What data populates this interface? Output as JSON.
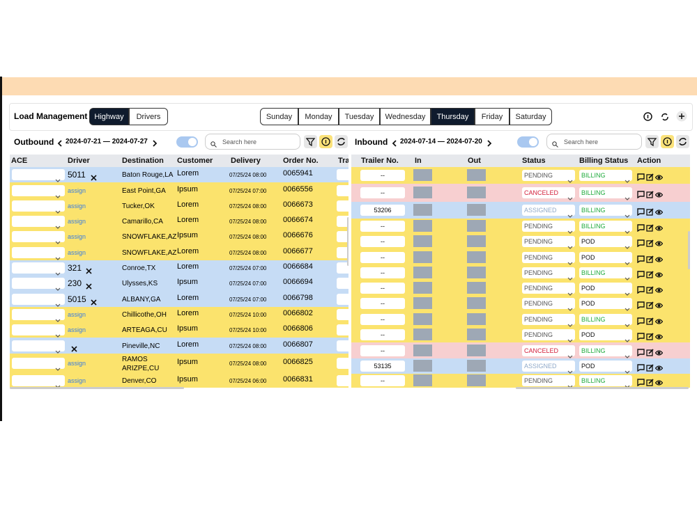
{
  "header": {
    "title": "Load Management",
    "modes": [
      "Highway",
      "Drivers"
    ],
    "days": [
      "Sunday",
      "Monday",
      "Tuesday",
      "Wednesday",
      "Thursday",
      "Friday",
      "Saturday"
    ]
  },
  "outbound": {
    "title": "Outbound",
    "range": "2024-07-21 — 2024-07-27",
    "search_placeholder": "Search here",
    "columns": [
      "ACE",
      "Driver",
      "Destination",
      "Customer",
      "Delivery",
      "Order No.",
      "Tra"
    ],
    "rows": [
      {
        "driver": "5011",
        "destination": "Baton Rouge,LA",
        "customer": "Lorem",
        "delivery": "07/25/24 08:00",
        "order": "0065941"
      },
      {
        "driver": "assign",
        "destination": "East Point,GA",
        "customer": "Ipsum",
        "delivery": "07/25/24 07:00",
        "order": "0066556"
      },
      {
        "driver": "assign",
        "destination": "Tucker,OK",
        "customer": "Lorem",
        "delivery": "07/25/24 08:00",
        "order": "0066673"
      },
      {
        "driver": "assign",
        "destination": "Camarillo,CA",
        "customer": "Lorem",
        "delivery": "07/25/24 08:00",
        "order": "0066674"
      },
      {
        "driver": "assign",
        "destination": "SNOWFLAKE,AZ",
        "customer": "Ipsum",
        "delivery": "07/25/24 08:00",
        "order": "0066676"
      },
      {
        "driver": "assign",
        "destination": "SNOWFLAKE,AZ",
        "customer": "Lorem",
        "delivery": "07/25/24 08:00",
        "order": "0066677"
      },
      {
        "driver": "321",
        "destination": "Conroe,TX",
        "customer": "Lorem",
        "delivery": "07/25/24 07:00",
        "order": "0066684"
      },
      {
        "driver": "230",
        "destination": "Ulysses,KS",
        "customer": "Ipsum",
        "delivery": "07/25/24 07:00",
        "order": "0066694"
      },
      {
        "driver": "5015",
        "destination": "ALBANY,GA",
        "customer": "Lorem",
        "delivery": "07/25/24 07:00",
        "order": "0066798"
      },
      {
        "driver": "assign",
        "destination": "Chillicothe,OH",
        "customer": "Lorem",
        "delivery": "07/25/24 10:00",
        "order": "0066802"
      },
      {
        "driver": "assign",
        "destination": "ARTEAGA,CU",
        "customer": "Ipsum",
        "delivery": "07/25/24 10:00",
        "order": "0066806"
      },
      {
        "driver": null,
        "destination": "Pineville,NC",
        "customer": "Lorem",
        "delivery": "07/25/24 08:00",
        "order": "0066807"
      },
      {
        "driver": "assign",
        "destination": "RAMOS ARIZPE,CU",
        "customer": "Ipsum",
        "delivery": "07/25/24 08:00",
        "order": "0066825"
      },
      {
        "driver": "assign",
        "destination": "Denver,CO",
        "customer": "Ipsum",
        "delivery": "07/25/24 06:00",
        "order": "0066831"
      }
    ]
  },
  "inbound": {
    "title": "Inbound",
    "range": "2024-07-14 — 2024-07-20",
    "search_placeholder": "Search here",
    "columns": [
      "Trailer No.",
      "In",
      "Out",
      "Status",
      "Billing Status",
      "Action"
    ],
    "rows": [
      {
        "trailer": "--",
        "status": "PENDING",
        "billing": "BILLING"
      },
      {
        "trailer": "--",
        "status": "CANCELED",
        "billing": "BILLING"
      },
      {
        "trailer": "53206",
        "status": "ASSIGNED",
        "billing": "BILLING"
      },
      {
        "trailer": "--",
        "status": "PENDING",
        "billing": "BILLING"
      },
      {
        "trailer": "--",
        "status": "PENDING",
        "billing": "POD"
      },
      {
        "trailer": "--",
        "status": "PENDING",
        "billing": "POD"
      },
      {
        "trailer": "--",
        "status": "PENDING",
        "billing": "BILLING"
      },
      {
        "trailer": "--",
        "status": "PENDING",
        "billing": "POD"
      },
      {
        "trailer": "--",
        "status": "PENDING",
        "billing": "POD"
      },
      {
        "trailer": "--",
        "status": "PENDING",
        "billing": "BILLING"
      },
      {
        "trailer": "--",
        "status": "PENDING",
        "billing": "POD"
      },
      {
        "trailer": "--",
        "status": "CANCELED",
        "billing": "BILLING"
      },
      {
        "trailer": "53135",
        "status": "ASSIGNED",
        "billing": "POD"
      },
      {
        "trailer": "--",
        "status": "PENDING",
        "billing": "BILLING"
      }
    ]
  }
}
